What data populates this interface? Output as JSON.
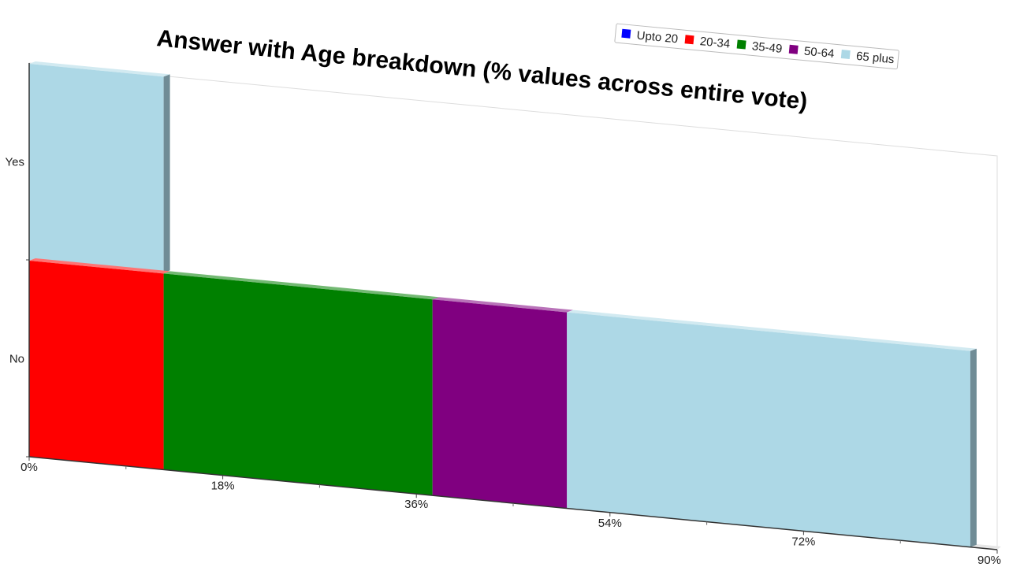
{
  "chart_data": {
    "type": "bar",
    "orientation": "horizontal",
    "stacked": true,
    "title": "Answer with Age breakdown (% values across entire vote)",
    "categories": [
      "Yes",
      "No"
    ],
    "x_ticks": [
      "0%",
      "18%",
      "36%",
      "54%",
      "72%",
      "90%"
    ],
    "xlim": [
      0,
      90
    ],
    "legend_position": "top-right",
    "series": [
      {
        "name": "Upto 20",
        "color": "#0000ff",
        "values": [
          0,
          0
        ]
      },
      {
        "name": "20-34",
        "color": "#ff0000",
        "values": [
          0,
          12.5
        ]
      },
      {
        "name": "35-49",
        "color": "#008000",
        "values": [
          0,
          25
        ]
      },
      {
        "name": "50-64",
        "color": "#800080",
        "values": [
          0,
          12.5
        ]
      },
      {
        "name": "65 plus",
        "color": "#add8e6",
        "values": [
          12.5,
          37.5
        ]
      }
    ]
  }
}
